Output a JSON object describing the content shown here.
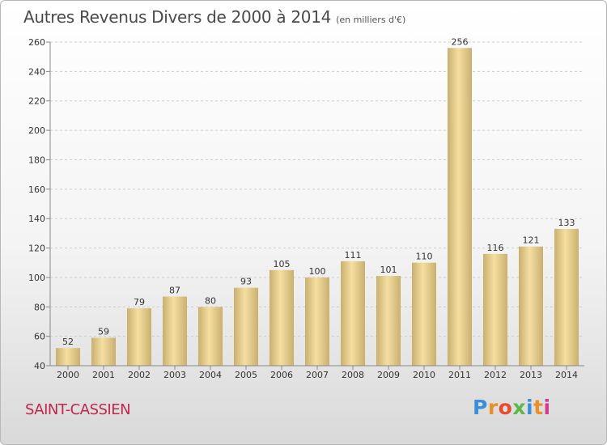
{
  "header": {
    "title": "Autres Revenus Divers de 2000 à 2014",
    "unit": "(en milliers d'€)"
  },
  "footer": {
    "place": "SAINT-CASSIEN",
    "logo": "Proxiti",
    "logo_colors": [
      "#3a8fd6",
      "#e8912b",
      "#e84a2b",
      "#5db846",
      "#3a8fd6",
      "#e8912b",
      "#d63a8a"
    ]
  },
  "colors": {
    "bar_light": "#f5dfa0",
    "bar_dark": "#c8b070",
    "axis": "#888888",
    "grid": "#cccccc"
  },
  "chart_data": {
    "type": "bar",
    "title": "Autres Revenus Divers de 2000 à 2014",
    "categories": [
      "2000",
      "2001",
      "2002",
      "2003",
      "2004",
      "2005",
      "2006",
      "2007",
      "2008",
      "2009",
      "2010",
      "2011",
      "2012",
      "2013",
      "2014"
    ],
    "values": [
      52,
      59,
      79,
      87,
      80,
      93,
      105,
      100,
      111,
      101,
      110,
      256,
      116,
      121,
      133
    ],
    "ylim": [
      40,
      260
    ],
    "yticks": [
      40,
      60,
      80,
      100,
      120,
      140,
      160,
      180,
      200,
      220,
      240,
      260
    ],
    "grid": true,
    "data_labels": true
  }
}
